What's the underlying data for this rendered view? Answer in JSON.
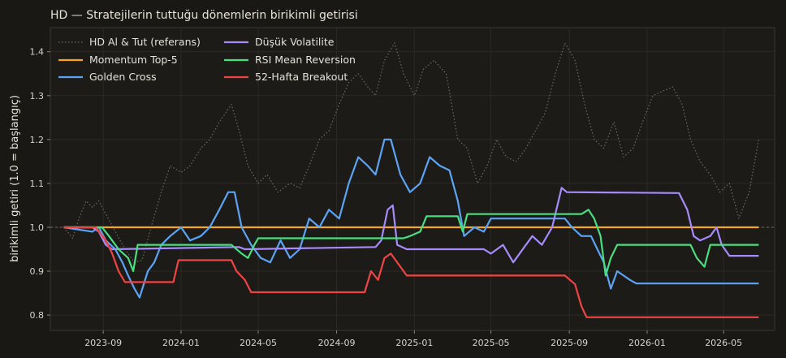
{
  "chart_data": {
    "type": "line",
    "title": "HD — Stratejilerin tuttuğu dönemlerin birikimli getirisi",
    "xlabel": "",
    "ylabel": "birikimli getiri (1.0 = başlangıç)",
    "xlim": [
      "2023-06-10",
      "2026-07-20"
    ],
    "ylim": [
      0.765,
      1.455
    ],
    "grid": true,
    "legend_position": "top-left",
    "x_ticks": [
      "2023-09",
      "2024-01",
      "2024-05",
      "2024-09",
      "2025-01",
      "2025-05",
      "2025-09",
      "2026-01",
      "2026-05"
    ],
    "y_ticks": [
      0.8,
      0.9,
      1.0,
      1.1,
      1.2,
      1.3,
      1.4
    ],
    "reference_line": 1.0,
    "series": [
      {
        "name": "HD Al & Tut (referans)",
        "color": "#6e6a64",
        "style": "dotted",
        "points": [
          [
            "2023-07-01",
            1.0
          ],
          [
            "2023-07-15",
            0.975
          ],
          [
            "2023-07-25",
            1.02
          ],
          [
            "2023-08-05",
            1.06
          ],
          [
            "2023-08-15",
            1.045
          ],
          [
            "2023-08-25",
            1.06
          ],
          [
            "2023-09-05",
            1.03
          ],
          [
            "2023-09-20",
            0.99
          ],
          [
            "2023-10-05",
            0.95
          ],
          [
            "2023-10-20",
            0.92
          ],
          [
            "2023-11-01",
            0.925
          ],
          [
            "2023-11-15",
            1.0
          ],
          [
            "2023-12-01",
            1.08
          ],
          [
            "2023-12-15",
            1.14
          ],
          [
            "2024-01-01",
            1.125
          ],
          [
            "2024-01-15",
            1.14
          ],
          [
            "2024-02-01",
            1.18
          ],
          [
            "2024-02-15",
            1.2
          ],
          [
            "2024-03-01",
            1.24
          ],
          [
            "2024-03-20",
            1.28
          ],
          [
            "2024-04-01",
            1.22
          ],
          [
            "2024-04-15",
            1.14
          ],
          [
            "2024-05-01",
            1.1
          ],
          [
            "2024-05-15",
            1.12
          ],
          [
            "2024-06-01",
            1.08
          ],
          [
            "2024-06-20",
            1.1
          ],
          [
            "2024-07-05",
            1.09
          ],
          [
            "2024-07-20",
            1.14
          ],
          [
            "2024-08-05",
            1.2
          ],
          [
            "2024-08-20",
            1.22
          ],
          [
            "2024-09-05",
            1.28
          ],
          [
            "2024-09-20",
            1.33
          ],
          [
            "2024-10-05",
            1.35
          ],
          [
            "2024-10-20",
            1.32
          ],
          [
            "2024-11-01",
            1.3
          ],
          [
            "2024-11-15",
            1.38
          ],
          [
            "2024-12-01",
            1.42
          ],
          [
            "2024-12-15",
            1.35
          ],
          [
            "2025-01-01",
            1.3
          ],
          [
            "2025-01-15",
            1.36
          ],
          [
            "2025-02-01",
            1.38
          ],
          [
            "2025-02-20",
            1.35
          ],
          [
            "2025-03-10",
            1.2
          ],
          [
            "2025-03-25",
            1.18
          ],
          [
            "2025-04-10",
            1.1
          ],
          [
            "2025-04-25",
            1.14
          ],
          [
            "2025-05-10",
            1.2
          ],
          [
            "2025-05-25",
            1.16
          ],
          [
            "2025-06-10",
            1.15
          ],
          [
            "2025-06-25",
            1.18
          ],
          [
            "2025-07-10",
            1.22
          ],
          [
            "2025-07-25",
            1.26
          ],
          [
            "2025-08-10",
            1.35
          ],
          [
            "2025-08-25",
            1.42
          ],
          [
            "2025-09-10",
            1.38
          ],
          [
            "2025-09-25",
            1.28
          ],
          [
            "2025-10-10",
            1.2
          ],
          [
            "2025-10-25",
            1.18
          ],
          [
            "2025-11-10",
            1.24
          ],
          [
            "2025-11-25",
            1.16
          ],
          [
            "2025-12-10",
            1.18
          ],
          [
            "2025-12-25",
            1.24
          ],
          [
            "2026-01-10",
            1.3
          ],
          [
            "2026-01-25",
            1.31
          ],
          [
            "2026-02-10",
            1.32
          ],
          [
            "2026-02-25",
            1.28
          ],
          [
            "2026-03-10",
            1.2
          ],
          [
            "2026-03-25",
            1.15
          ],
          [
            "2026-04-10",
            1.12
          ],
          [
            "2026-04-25",
            1.08
          ],
          [
            "2026-05-10",
            1.1
          ],
          [
            "2026-05-25",
            1.02
          ],
          [
            "2026-06-10",
            1.08
          ],
          [
            "2026-06-25",
            1.2
          ]
        ]
      },
      {
        "name": "Momentum Top-5",
        "color": "#f5a623",
        "style": "solid",
        "points": [
          [
            "2023-07-01",
            1.0
          ],
          [
            "2026-06-25",
            1.0
          ]
        ]
      },
      {
        "name": "Golden Cross",
        "color": "#5ba4f5",
        "style": "solid",
        "points": [
          [
            "2023-07-01",
            1.0
          ],
          [
            "2023-08-15",
            0.99
          ],
          [
            "2023-08-25",
            1.0
          ],
          [
            "2023-09-05",
            0.97
          ],
          [
            "2023-09-20",
            0.95
          ],
          [
            "2023-10-01",
            0.92
          ],
          [
            "2023-10-10",
            0.89
          ],
          [
            "2023-10-20",
            0.86
          ],
          [
            "2023-10-28",
            0.84
          ],
          [
            "2023-11-10",
            0.9
          ],
          [
            "2023-11-20",
            0.92
          ],
          [
            "2023-12-01",
            0.96
          ],
          [
            "2023-12-15",
            0.98
          ],
          [
            "2024-01-01",
            1.0
          ],
          [
            "2024-01-15",
            0.97
          ],
          [
            "2024-02-01",
            0.98
          ],
          [
            "2024-02-15",
            1.0
          ],
          [
            "2024-03-01",
            1.04
          ],
          [
            "2024-03-15",
            1.08
          ],
          [
            "2024-03-25",
            1.08
          ],
          [
            "2024-04-05",
            1.0
          ],
          [
            "2024-04-20",
            0.96
          ],
          [
            "2024-05-05",
            0.93
          ],
          [
            "2024-05-20",
            0.92
          ],
          [
            "2024-06-05",
            0.97
          ],
          [
            "2024-06-20",
            0.93
          ],
          [
            "2024-07-05",
            0.95
          ],
          [
            "2024-07-20",
            1.02
          ],
          [
            "2024-08-05",
            1.0
          ],
          [
            "2024-08-20",
            1.04
          ],
          [
            "2024-09-05",
            1.02
          ],
          [
            "2024-09-20",
            1.1
          ],
          [
            "2024-10-05",
            1.16
          ],
          [
            "2024-10-20",
            1.14
          ],
          [
            "2024-11-01",
            1.12
          ],
          [
            "2024-11-15",
            1.2
          ],
          [
            "2024-11-25",
            1.2
          ],
          [
            "2024-12-10",
            1.12
          ],
          [
            "2024-12-25",
            1.08
          ],
          [
            "2025-01-10",
            1.1
          ],
          [
            "2025-01-25",
            1.16
          ],
          [
            "2025-02-10",
            1.14
          ],
          [
            "2025-02-25",
            1.13
          ],
          [
            "2025-03-10",
            1.06
          ],
          [
            "2025-03-20",
            0.98
          ],
          [
            "2025-04-05",
            1.0
          ],
          [
            "2025-04-20",
            0.99
          ],
          [
            "2025-05-01",
            1.02
          ],
          [
            "2025-08-25",
            1.02
          ],
          [
            "2025-09-05",
            1.0
          ],
          [
            "2025-09-20",
            0.98
          ],
          [
            "2025-10-05",
            0.98
          ],
          [
            "2025-10-15",
            0.95
          ],
          [
            "2025-10-25",
            0.92
          ],
          [
            "2025-11-05",
            0.86
          ],
          [
            "2025-11-15",
            0.9
          ],
          [
            "2025-11-25",
            0.89
          ],
          [
            "2025-12-05",
            0.88
          ],
          [
            "2025-12-15",
            0.872
          ],
          [
            "2026-06-25",
            0.872
          ]
        ]
      },
      {
        "name": "Düşük Volatilite",
        "color": "#a78bfa",
        "style": "solid",
        "points": [
          [
            "2023-07-01",
            1.0
          ],
          [
            "2023-08-15",
            1.0
          ],
          [
            "2023-08-25",
            0.99
          ],
          [
            "2023-09-05",
            0.96
          ],
          [
            "2023-09-15",
            0.95
          ],
          [
            "2024-04-01",
            0.955
          ],
          [
            "2024-04-10",
            0.95
          ],
          [
            "2024-11-01",
            0.955
          ],
          [
            "2024-11-10",
            0.97
          ],
          [
            "2024-11-20",
            1.04
          ],
          [
            "2024-11-28",
            1.05
          ],
          [
            "2024-12-05",
            0.96
          ],
          [
            "2024-12-20",
            0.95
          ],
          [
            "2025-04-01",
            0.95
          ],
          [
            "2025-04-20",
            0.95
          ],
          [
            "2025-05-01",
            0.94
          ],
          [
            "2025-05-20",
            0.96
          ],
          [
            "2025-06-05",
            0.92
          ],
          [
            "2025-06-20",
            0.95
          ],
          [
            "2025-07-05",
            0.98
          ],
          [
            "2025-07-20",
            0.96
          ],
          [
            "2025-08-05",
            1.0
          ],
          [
            "2025-08-20",
            1.09
          ],
          [
            "2025-08-28",
            1.08
          ],
          [
            "2026-02-20",
            1.078
          ],
          [
            "2026-03-05",
            1.04
          ],
          [
            "2026-03-15",
            0.98
          ],
          [
            "2026-03-25",
            0.97
          ],
          [
            "2026-04-10",
            0.98
          ],
          [
            "2026-04-20",
            1.0
          ],
          [
            "2026-04-28",
            0.96
          ],
          [
            "2026-05-10",
            0.935
          ],
          [
            "2026-06-25",
            0.935
          ]
        ]
      },
      {
        "name": "RSI Mean Reversion",
        "color": "#4ade80",
        "style": "solid",
        "points": [
          [
            "2023-07-01",
            1.0
          ],
          [
            "2023-08-30",
            1.0
          ],
          [
            "2023-09-10",
            0.98
          ],
          [
            "2023-09-25",
            0.95
          ],
          [
            "2023-10-10",
            0.93
          ],
          [
            "2023-10-18",
            0.9
          ],
          [
            "2023-10-25",
            0.96
          ],
          [
            "2024-03-20",
            0.96
          ],
          [
            "2024-04-05",
            0.94
          ],
          [
            "2024-04-15",
            0.93
          ],
          [
            "2024-04-25",
            0.96
          ],
          [
            "2024-05-01",
            0.975
          ],
          [
            "2024-12-15",
            0.975
          ],
          [
            "2024-12-25",
            0.98
          ],
          [
            "2025-01-10",
            0.99
          ],
          [
            "2025-01-20",
            1.025
          ],
          [
            "2025-03-10",
            1.025
          ],
          [
            "2025-03-18",
            0.99
          ],
          [
            "2025-03-25",
            1.03
          ],
          [
            "2025-09-20",
            1.03
          ],
          [
            "2025-10-01",
            1.04
          ],
          [
            "2025-10-10",
            1.02
          ],
          [
            "2025-10-20",
            0.98
          ],
          [
            "2025-10-28",
            0.89
          ],
          [
            "2025-11-05",
            0.93
          ],
          [
            "2025-11-15",
            0.96
          ],
          [
            "2026-03-10",
            0.96
          ],
          [
            "2026-03-20",
            0.93
          ],
          [
            "2026-04-01",
            0.91
          ],
          [
            "2026-04-10",
            0.96
          ],
          [
            "2026-06-25",
            0.96
          ]
        ]
      },
      {
        "name": "52-Hafta Breakout",
        "color": "#ef4444",
        "style": "solid",
        "points": [
          [
            "2023-07-01",
            1.0
          ],
          [
            "2023-08-20",
            1.0
          ],
          [
            "2023-09-05",
            0.97
          ],
          [
            "2023-09-15",
            0.94
          ],
          [
            "2023-09-25",
            0.9
          ],
          [
            "2023-10-05",
            0.875
          ],
          [
            "2023-12-20",
            0.875
          ],
          [
            "2023-12-28",
            0.925
          ],
          [
            "2024-03-20",
            0.925
          ],
          [
            "2024-03-28",
            0.9
          ],
          [
            "2024-04-10",
            0.88
          ],
          [
            "2024-04-20",
            0.852
          ],
          [
            "2024-10-15",
            0.852
          ],
          [
            "2024-10-25",
            0.9
          ],
          [
            "2024-11-05",
            0.88
          ],
          [
            "2024-11-15",
            0.93
          ],
          [
            "2024-11-25",
            0.94
          ],
          [
            "2024-12-10",
            0.91
          ],
          [
            "2024-12-20",
            0.89
          ],
          [
            "2025-08-25",
            0.89
          ],
          [
            "2025-09-10",
            0.87
          ],
          [
            "2025-09-20",
            0.82
          ],
          [
            "2025-09-28",
            0.795
          ],
          [
            "2026-06-25",
            0.795
          ]
        ]
      }
    ],
    "legend": [
      [
        "HD Al & Tut (referans)",
        "Düşük Volatilite"
      ],
      [
        "Momentum Top-5",
        "RSI Mean Reversion"
      ],
      [
        "Golden Cross",
        "52-Hafta Breakout"
      ]
    ]
  }
}
